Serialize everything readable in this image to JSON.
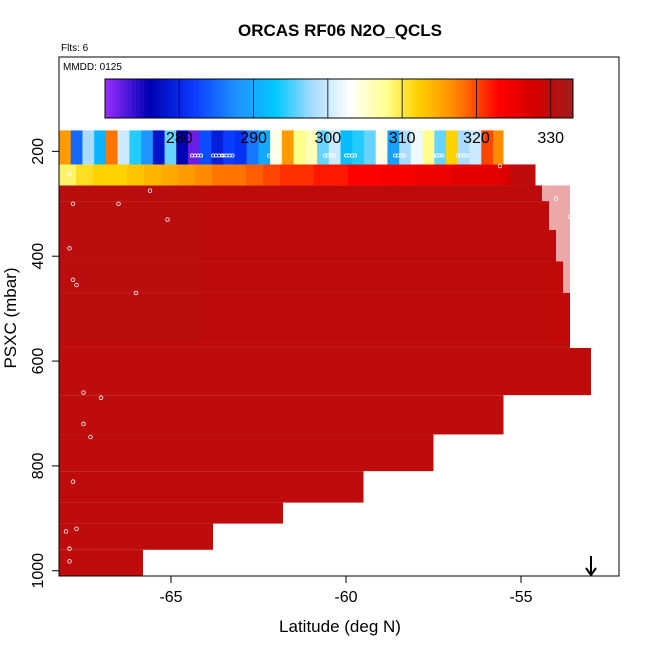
{
  "chart_data": {
    "type": "heatmap",
    "title": "ORCAS RF06 N2O_QCLS",
    "note_flights": "Flts: 6",
    "note_date": "MMDD: 0125",
    "xlabel": "Latitude (deg N)",
    "ylabel": "PSXC (mbar)",
    "xlim": [
      -68.2,
      -52.2
    ],
    "ylim": [
      1010,
      20
    ],
    "y_reversed": true,
    "x_ticks": [
      -65,
      -60,
      -55
    ],
    "x_tick_labels": [
      "-65",
      "-60",
      "-55"
    ],
    "y_ticks": [
      200,
      400,
      600,
      800,
      1000
    ],
    "y_tick_labels": [
      "200",
      "400",
      "600",
      "800",
      "1000"
    ],
    "colorbar": {
      "min": 270,
      "max": 333,
      "ticks": [
        280,
        290,
        300,
        310,
        320,
        330
      ],
      "tick_labels": [
        "280",
        "290",
        "300",
        "310",
        "320",
        "330"
      ],
      "stops": [
        {
          "v": 270,
          "c": "#9a2fff"
        },
        {
          "v": 276,
          "c": "#0000b4"
        },
        {
          "v": 282,
          "c": "#0a3cff"
        },
        {
          "v": 288,
          "c": "#1e96ff"
        },
        {
          "v": 293,
          "c": "#00c8ff"
        },
        {
          "v": 298,
          "c": "#aadcff"
        },
        {
          "v": 303,
          "c": "#ffffff"
        },
        {
          "v": 308,
          "c": "#ffff8c"
        },
        {
          "v": 312,
          "c": "#ffd200"
        },
        {
          "v": 317,
          "c": "#ff8c00"
        },
        {
          "v": 323,
          "c": "#ff0000"
        },
        {
          "v": 328,
          "c": "#d20000"
        },
        {
          "v": 333,
          "c": "#a01e1e"
        }
      ]
    },
    "column_edges": [
      -68.2,
      -66.2,
      -64.2,
      -62.2,
      -60.2,
      -58.2,
      -56.2,
      -54.2,
      -53.6
    ],
    "layer_rows": [
      {
        "p0": 265,
        "p1": 960,
        "values": [
          331,
          331,
          330,
          330,
          330,
          330,
          330,
          329
        ],
        "x_end": [
          -66.2,
          -64.2,
          -62.2,
          -60.2,
          -58.2,
          -56.2,
          -54.2,
          -53.6
        ]
      }
    ],
    "blocks": [
      {
        "x0": -68.2,
        "x1": -54.6,
        "p0": 225,
        "p1": 265,
        "v": 322
      },
      {
        "x0": -68.2,
        "x1": -54.6,
        "p0": 160,
        "p1": 225,
        "v": 300
      }
    ],
    "profile": [
      {
        "x_end": -54.4,
        "p_top": 265
      },
      {
        "x_end": -54.2,
        "p_top": 295
      },
      {
        "x_end": -54.0,
        "p_top": 350
      },
      {
        "x_end": -53.8,
        "p_top": 410
      },
      {
        "x_end": -53.6,
        "p_top": 470
      },
      {
        "x_end": -53.0,
        "p_top": 575
      },
      {
        "x_end": -55.5,
        "p_top": 665
      },
      {
        "x_end": -57.5,
        "p_top": 740
      },
      {
        "x_end": -59.5,
        "p_top": 810
      },
      {
        "x_end": -61.8,
        "p_top": 870
      },
      {
        "x_end": -63.8,
        "p_top": 910
      },
      {
        "x_end": -65.8,
        "p_top": 960
      },
      {
        "x_end": -68.0,
        "p_top": 1010
      }
    ],
    "low_level_value": 330,
    "upper_band_values": [
      316,
      285,
      298,
      291,
      318,
      300,
      294,
      288,
      278,
      296,
      276,
      272,
      283,
      279,
      282,
      281,
      286,
      290,
      304,
      316,
      308,
      306,
      296,
      300,
      292,
      294,
      296,
      304,
      289,
      298,
      302,
      308,
      296,
      312,
      298,
      300,
      320
    ],
    "upper_band_extent": [
      -68.2,
      -55.8
    ],
    "gradient_band_values": [
      309,
      311,
      312,
      312,
      313,
      314,
      315,
      316,
      317,
      318,
      318,
      319,
      320,
      321,
      321,
      322,
      322,
      323,
      323,
      324,
      324,
      325,
      325,
      326,
      326,
      326,
      327,
      327
    ],
    "gradient_band_extent": [
      -68.2,
      -54.6
    ],
    "gradient_band_tail": {
      "x0": -55.3,
      "x1": -54.6,
      "v": 330
    },
    "band_edge_value": 317,
    "band_edge_x": [
      -55.8,
      -55.5
    ],
    "markers": [
      {
        "x": -67.9,
        "y": 243
      },
      {
        "x": -67.8,
        "y": 300
      },
      {
        "x": -67.9,
        "y": 385
      },
      {
        "x": -67.8,
        "y": 445
      },
      {
        "x": -67.7,
        "y": 455
      },
      {
        "x": -66.5,
        "y": 300
      },
      {
        "x": -65.6,
        "y": 275
      },
      {
        "x": -65.1,
        "y": 330
      },
      {
        "x": -66.0,
        "y": 470
      },
      {
        "x": -67.5,
        "y": 660
      },
      {
        "x": -67.0,
        "y": 670
      },
      {
        "x": -67.5,
        "y": 720
      },
      {
        "x": -67.3,
        "y": 745
      },
      {
        "x": -67.8,
        "y": 830
      },
      {
        "x": -68.0,
        "y": 925
      },
      {
        "x": -67.7,
        "y": 920
      },
      {
        "x": -67.9,
        "y": 958
      },
      {
        "x": -67.9,
        "y": 982
      },
      {
        "x": -54.4,
        "y": 245
      },
      {
        "x": -54.0,
        "y": 290
      },
      {
        "x": -53.6,
        "y": 325
      },
      {
        "x": -53.3,
        "y": 395
      },
      {
        "x": -52.9,
        "y": 525
      },
      {
        "x": -52.7,
        "y": 585
      },
      {
        "x": -52.6,
        "y": 660
      },
      {
        "x": -55.6,
        "y": 228
      }
    ],
    "marker_band_x": [
      -64.4,
      -63.8,
      -63.5,
      -62.2,
      -60.6,
      -60.0,
      -58.6,
      -57.5,
      -56.8
    ],
    "arrow_x": -53.0
  }
}
